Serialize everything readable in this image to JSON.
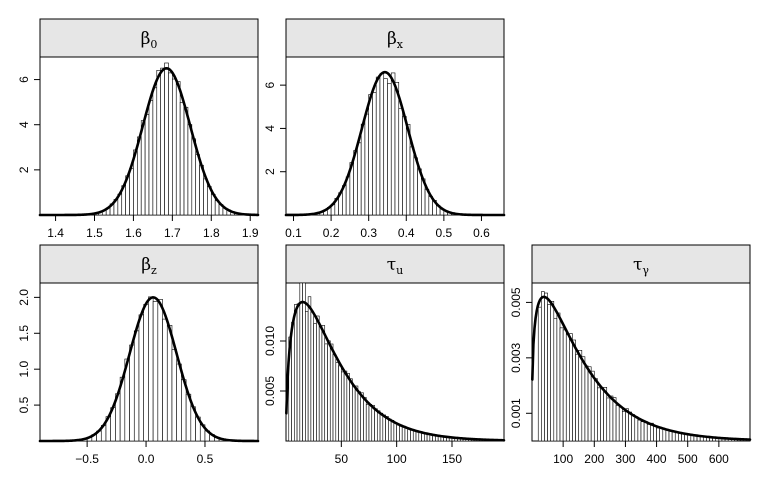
{
  "chart_data": [
    {
      "id": "beta0",
      "type": "bar",
      "title": "β",
      "title_sub": "0",
      "xlim": [
        1.36,
        1.92
      ],
      "ylim": [
        0,
        7.0
      ],
      "xticks": [
        1.4,
        1.5,
        1.6,
        1.7,
        1.8,
        1.9
      ],
      "xtick_labels": [
        "1.4",
        "1.5",
        "1.6",
        "1.7",
        "1.8",
        "1.9"
      ],
      "yticks": [
        2,
        4,
        6
      ],
      "ytick_labels": [
        "2",
        "4",
        "6"
      ],
      "density": {
        "kind": "normal",
        "mean": 1.685,
        "sd": 0.061,
        "peak": 6.5,
        "range": [
          1.36,
          1.92
        ]
      },
      "histogram": {
        "bin_width": 0.01,
        "start": 1.45,
        "end": 1.9,
        "noise_seed": 3,
        "noise": 0.06
      }
    },
    {
      "id": "betax",
      "type": "bar",
      "title": "β",
      "title_sub": "x",
      "xlim": [
        0.08,
        0.66
      ],
      "ylim": [
        0,
        7.3
      ],
      "xticks": [
        0.1,
        0.2,
        0.3,
        0.4,
        0.5,
        0.6
      ],
      "xtick_labels": [
        "0.1",
        "0.2",
        "0.3",
        "0.4",
        "0.5",
        "0.6"
      ],
      "yticks": [
        2,
        4,
        6
      ],
      "ytick_labels": [
        "2",
        "4",
        "6"
      ],
      "density": {
        "kind": "normal",
        "mean": 0.343,
        "sd": 0.061,
        "peak": 6.6,
        "range": [
          0.08,
          0.66
        ]
      },
      "histogram": {
        "bin_width": 0.01,
        "start": 0.15,
        "end": 0.57,
        "noise_seed": 7,
        "noise": 0.07
      }
    },
    {
      "id": "betaz",
      "type": "bar",
      "title": "β",
      "title_sub": "z",
      "xlim": [
        -0.9,
        0.95
      ],
      "ylim": [
        0,
        2.2
      ],
      "xticks": [
        -0.5,
        0.0,
        0.5
      ],
      "xtick_labels": [
        "−0.5",
        "0.0",
        "0.5"
      ],
      "yticks": [
        0.5,
        1.0,
        1.5,
        2.0
      ],
      "ytick_labels": [
        "0.5",
        "1.0",
        "1.5",
        "2.0"
      ],
      "density": {
        "kind": "normal",
        "mean": 0.06,
        "sd": 0.2,
        "peak": 2.0,
        "range": [
          -0.9,
          0.95
        ]
      },
      "histogram": {
        "bin_width": 0.04,
        "start": -0.62,
        "end": 0.7,
        "noise_seed": 11,
        "noise": 0.05
      }
    },
    {
      "id": "tauu",
      "type": "bar",
      "title": "τ",
      "title_sub": "u",
      "xlim": [
        0,
        197
      ],
      "ylim": [
        0,
        0.0158
      ],
      "xticks": [
        50,
        100,
        150
      ],
      "xtick_labels": [
        "50",
        "100",
        "150"
      ],
      "yticks": [
        0.005,
        0.01
      ],
      "ytick_labels": [
        "0.005",
        "0.010"
      ],
      "density": {
        "kind": "gamma",
        "shape": 1.55,
        "rate": 0.0366,
        "peak": 0.0139,
        "range": [
          0.3,
          197
        ]
      },
      "histogram": {
        "bin_width": 2.5,
        "start": 2.5,
        "end": 197,
        "noise_seed": 5,
        "noise": 0.08,
        "spike": {
          "x": 15,
          "value": 0.0158
        }
      }
    },
    {
      "id": "taugamma",
      "type": "bar",
      "title": "τ",
      "title_sub": "γ",
      "xlim": [
        0,
        700
      ],
      "ylim": [
        0,
        0.0057
      ],
      "xticks": [
        100,
        200,
        300,
        400,
        500,
        600
      ],
      "xtick_labels": [
        "100",
        "200",
        "300",
        "400",
        "500",
        "600"
      ],
      "yticks": [
        0.001,
        0.003,
        0.005
      ],
      "ytick_labels": [
        "0.001",
        "0.003",
        "0.005"
      ],
      "density": {
        "kind": "gamma",
        "shape": 1.32,
        "rate": 0.0084,
        "peak": 0.0052,
        "range": [
          1,
          700
        ]
      },
      "histogram": {
        "bin_width": 10,
        "start": 20,
        "end": 700,
        "noise_seed": 9,
        "noise": 0.09
      }
    }
  ]
}
